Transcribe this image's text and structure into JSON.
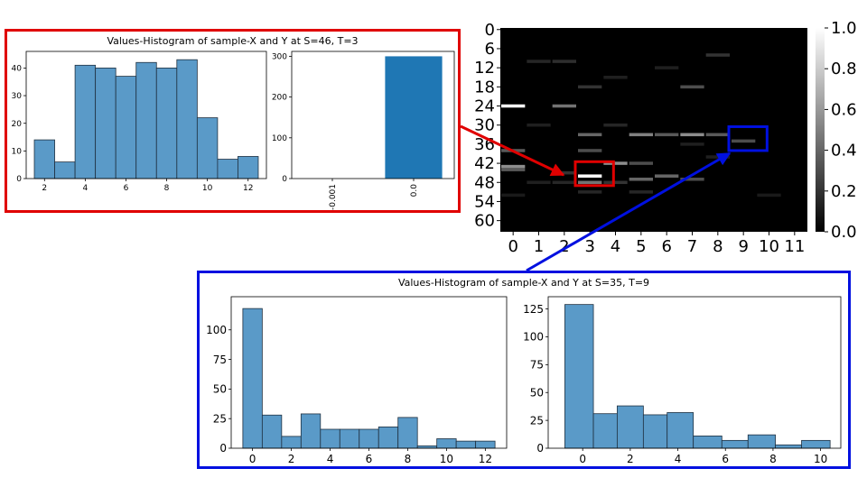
{
  "chart_data": [
    {
      "id": "heatmap",
      "type": "heatmap",
      "y_tick_labels": [
        "0",
        "6",
        "12",
        "18",
        "24",
        "30",
        "36",
        "42",
        "48",
        "54",
        "60"
      ],
      "x_tick_labels": [
        "0",
        "1",
        "2",
        "3",
        "4",
        "5",
        "6",
        "7",
        "8",
        "9",
        "10",
        "11"
      ],
      "colorbar": {
        "ticks": [
          "1.0",
          "0.8",
          "0.6",
          "0.4",
          "0.2",
          "0.0"
        ],
        "range": [
          0,
          1
        ]
      },
      "n_rows": 64,
      "n_cols": 12,
      "cells": [
        {
          "col": 0,
          "row": 24,
          "v": 1.0
        },
        {
          "col": 0,
          "row": 38,
          "v": 0.35
        },
        {
          "col": 0,
          "row": 43,
          "v": 0.55
        },
        {
          "col": 0,
          "row": 44,
          "v": 0.35
        },
        {
          "col": 0,
          "row": 52,
          "v": 0.1
        },
        {
          "col": 1,
          "row": 10,
          "v": 0.15
        },
        {
          "col": 1,
          "row": 30,
          "v": 0.12
        },
        {
          "col": 1,
          "row": 48,
          "v": 0.12
        },
        {
          "col": 2,
          "row": 10,
          "v": 0.18
        },
        {
          "col": 2,
          "row": 24,
          "v": 0.45
        },
        {
          "col": 2,
          "row": 45,
          "v": 0.2
        },
        {
          "col": 2,
          "row": 48,
          "v": 0.15
        },
        {
          "col": 3,
          "row": 18,
          "v": 0.2
        },
        {
          "col": 3,
          "row": 33,
          "v": 0.4
        },
        {
          "col": 3,
          "row": 38,
          "v": 0.3
        },
        {
          "col": 3,
          "row": 46,
          "v": 1.0
        },
        {
          "col": 3,
          "row": 48,
          "v": 0.45
        },
        {
          "col": 3,
          "row": 51,
          "v": 0.15
        },
        {
          "col": 4,
          "row": 15,
          "v": 0.12
        },
        {
          "col": 4,
          "row": 30,
          "v": 0.15
        },
        {
          "col": 4,
          "row": 42,
          "v": 0.55
        },
        {
          "col": 4,
          "row": 48,
          "v": 0.2
        },
        {
          "col": 5,
          "row": 33,
          "v": 0.5
        },
        {
          "col": 5,
          "row": 42,
          "v": 0.3
        },
        {
          "col": 5,
          "row": 47,
          "v": 0.4
        },
        {
          "col": 5,
          "row": 51,
          "v": 0.15
        },
        {
          "col": 6,
          "row": 12,
          "v": 0.12
        },
        {
          "col": 6,
          "row": 33,
          "v": 0.35
        },
        {
          "col": 6,
          "row": 46,
          "v": 0.4
        },
        {
          "col": 7,
          "row": 18,
          "v": 0.3
        },
        {
          "col": 7,
          "row": 33,
          "v": 0.55
        },
        {
          "col": 7,
          "row": 36,
          "v": 0.12
        },
        {
          "col": 7,
          "row": 47,
          "v": 0.3
        },
        {
          "col": 8,
          "row": 8,
          "v": 0.2
        },
        {
          "col": 8,
          "row": 33,
          "v": 0.35
        },
        {
          "col": 8,
          "row": 40,
          "v": 0.12
        },
        {
          "col": 9,
          "row": 35,
          "v": 0.3
        },
        {
          "col": 10,
          "row": 52,
          "v": 0.1
        }
      ],
      "highlights": [
        {
          "color": "#e00000",
          "row": 46,
          "col": 3
        },
        {
          "color": "#0010e0",
          "row": 35,
          "col": 9
        }
      ]
    },
    {
      "id": "red_x",
      "type": "bar",
      "title": "Values-Histogram of sample-X and Y at S=46, T=3",
      "bins": [
        {
          "x0": 1.5,
          "x1": 2.5,
          "y": 14
        },
        {
          "x0": 2.5,
          "x1": 3.5,
          "y": 6
        },
        {
          "x0": 3.5,
          "x1": 4.5,
          "y": 41
        },
        {
          "x0": 4.5,
          "x1": 5.5,
          "y": 40
        },
        {
          "x0": 5.5,
          "x1": 6.5,
          "y": 37
        },
        {
          "x0": 6.5,
          "x1": 7.5,
          "y": 42
        },
        {
          "x0": 7.5,
          "x1": 8.5,
          "y": 40
        },
        {
          "x0": 8.5,
          "x1": 9.5,
          "y": 43
        },
        {
          "x0": 9.5,
          "x1": 10.5,
          "y": 22
        },
        {
          "x0": 10.5,
          "x1": 11.5,
          "y": 7
        },
        {
          "x0": 11.5,
          "x1": 12.5,
          "y": 8
        }
      ],
      "xlim": [
        1.1,
        12.9
      ],
      "ylim": [
        0,
        46
      ],
      "xticks": [
        2,
        4,
        6,
        8,
        10,
        12
      ],
      "yticks": [
        0,
        10,
        20,
        30,
        40
      ]
    },
    {
      "id": "red_y",
      "type": "bar",
      "categories": [
        "-0.001",
        "0.0"
      ],
      "values": [
        0,
        300
      ],
      "ylim": [
        0,
        312
      ],
      "yticks": [
        0,
        100,
        200,
        300
      ]
    },
    {
      "id": "blue_x",
      "type": "bar",
      "title": "Values-Histogram of sample-X and Y at S=35, T=9",
      "bins": [
        {
          "x0": -0.5,
          "x1": 0.5,
          "y": 118
        },
        {
          "x0": 0.5,
          "x1": 1.5,
          "y": 28
        },
        {
          "x0": 1.5,
          "x1": 2.5,
          "y": 10
        },
        {
          "x0": 2.5,
          "x1": 3.5,
          "y": 29
        },
        {
          "x0": 3.5,
          "x1": 4.5,
          "y": 16
        },
        {
          "x0": 4.5,
          "x1": 5.5,
          "y": 16
        },
        {
          "x0": 5.5,
          "x1": 6.5,
          "y": 16
        },
        {
          "x0": 6.5,
          "x1": 7.5,
          "y": 18
        },
        {
          "x0": 7.5,
          "x1": 8.5,
          "y": 26
        },
        {
          "x0": 8.5,
          "x1": 9.5,
          "y": 2
        },
        {
          "x0": 9.5,
          "x1": 10.5,
          "y": 8
        },
        {
          "x0": 10.5,
          "x1": 11.5,
          "y": 6
        },
        {
          "x0": 11.5,
          "x1": 12.5,
          "y": 6
        }
      ],
      "xlim": [
        -1.1,
        13.1
      ],
      "ylim": [
        0,
        128
      ],
      "xticks": [
        0,
        2,
        4,
        6,
        8,
        10,
        12
      ],
      "yticks": [
        0,
        25,
        50,
        75,
        100
      ]
    },
    {
      "id": "blue_y",
      "type": "bar",
      "bins": [
        {
          "x0": -0.75,
          "x1": 0.45,
          "y": 129
        },
        {
          "x0": 0.45,
          "x1": 1.45,
          "y": 31
        },
        {
          "x0": 1.45,
          "x1": 2.55,
          "y": 38
        },
        {
          "x0": 2.55,
          "x1": 3.55,
          "y": 30
        },
        {
          "x0": 3.55,
          "x1": 4.65,
          "y": 32
        },
        {
          "x0": 4.65,
          "x1": 5.85,
          "y": 11
        },
        {
          "x0": 5.85,
          "x1": 6.95,
          "y": 7
        },
        {
          "x0": 6.95,
          "x1": 8.1,
          "y": 12
        },
        {
          "x0": 8.1,
          "x1": 9.2,
          "y": 3
        },
        {
          "x0": 9.2,
          "x1": 10.4,
          "y": 7
        }
      ],
      "xlim": [
        -1.45,
        10.85
      ],
      "ylim": [
        0,
        136
      ],
      "xticks": [
        0,
        2,
        4,
        6,
        8,
        10
      ],
      "yticks": [
        0,
        25,
        50,
        75,
        100,
        125
      ]
    }
  ],
  "colors": {
    "bar_fill": "#5a9ac8",
    "bar_fill_solid": "#1f77b4",
    "bar_edge": "#1f3040",
    "red": "#e00000",
    "blue": "#0010e0"
  }
}
